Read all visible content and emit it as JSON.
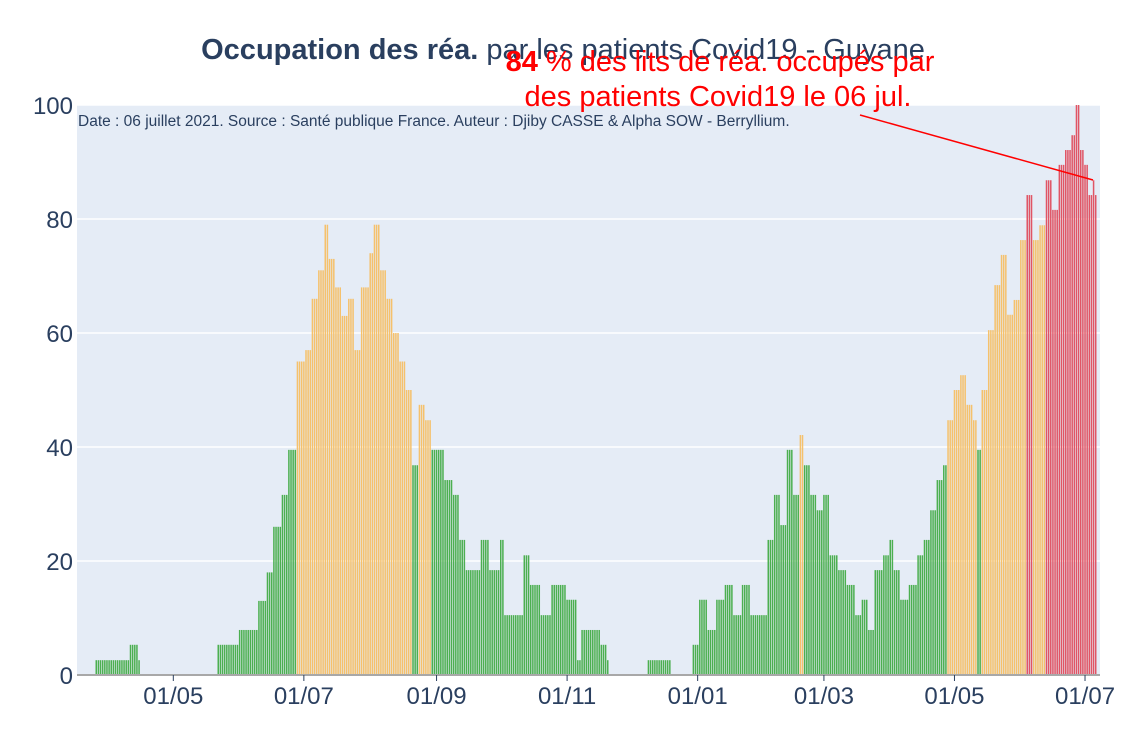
{
  "chart_data": {
    "type": "bar",
    "title": "Occupation des réa. par les patients Covid19 - Guyane",
    "title_bold_part": "Occupation des réa.",
    "title_rest": " par les patients Covid19 - Guyane",
    "subtitle": "Date : 06 juillet 2021. Source : Santé publique France. Auteur : Djiby CASSE & Alpha SOW - Berryllium.",
    "annotation": {
      "value_text": "84",
      "line1_rest": " % des lits de réa. occupés par",
      "line2": "des patients Covid19 le 06 jul."
    },
    "x_start_date": "2020-03-19",
    "x_end_date": "2021-07-06",
    "xlim": [
      "2020-03-17",
      "2021-07-08"
    ],
    "ylim": [
      0,
      100
    ],
    "x_ticks": [
      {
        "date": "2020-05-01",
        "label": "01/05"
      },
      {
        "date": "2020-07-01",
        "label": "01/07"
      },
      {
        "date": "2020-09-01",
        "label": "01/09"
      },
      {
        "date": "2020-11-01",
        "label": "01/11"
      },
      {
        "date": "2021-01-01",
        "label": "01/01"
      },
      {
        "date": "2021-03-01",
        "label": "01/03"
      },
      {
        "date": "2021-05-01",
        "label": "01/05"
      },
      {
        "date": "2021-07-01",
        "label": "01/07"
      }
    ],
    "y_ticks": [
      {
        "value": 0,
        "label": "0"
      },
      {
        "value": 20,
        "label": "20"
      },
      {
        "value": 40,
        "label": "40"
      },
      {
        "value": 60,
        "label": "60"
      },
      {
        "value": 80,
        "label": "80"
      },
      {
        "value": 100,
        "label": "100"
      }
    ],
    "color_thresholds": [
      {
        "max": 40,
        "color": "#4caf50"
      },
      {
        "max": 60,
        "color": "#f5c16c"
      },
      {
        "max": 80,
        "color": "#f5c16c"
      },
      {
        "max": 1000,
        "color": "#e05565"
      }
    ],
    "series_keypoints": [
      [
        "2020-03-19",
        0
      ],
      [
        "2020-03-25",
        0
      ],
      [
        "2020-03-26",
        2.6
      ],
      [
        "2020-04-10",
        2.6
      ],
      [
        "2020-04-11",
        5.3
      ],
      [
        "2020-04-14",
        5.3
      ],
      [
        "2020-04-15",
        2.6
      ],
      [
        "2020-04-16",
        0
      ],
      [
        "2020-05-21",
        0
      ],
      [
        "2020-05-22",
        5.3
      ],
      [
        "2020-05-31",
        5.3
      ],
      [
        "2020-06-01",
        7.9
      ],
      [
        "2020-06-07",
        7.9
      ],
      [
        "2020-06-10",
        13
      ],
      [
        "2020-06-14",
        18
      ],
      [
        "2020-06-17",
        26
      ],
      [
        "2020-06-21",
        31.6
      ],
      [
        "2020-06-24",
        39.5
      ],
      [
        "2020-06-28",
        55
      ],
      [
        "2020-07-02",
        57
      ],
      [
        "2020-07-05",
        66
      ],
      [
        "2020-07-08",
        71
      ],
      [
        "2020-07-11",
        79
      ],
      [
        "2020-07-13",
        73
      ],
      [
        "2020-07-16",
        68
      ],
      [
        "2020-07-19",
        63
      ],
      [
        "2020-07-22",
        66
      ],
      [
        "2020-07-25",
        57
      ],
      [
        "2020-07-28",
        68
      ],
      [
        "2020-08-01",
        74
      ],
      [
        "2020-08-03",
        79
      ],
      [
        "2020-08-06",
        71
      ],
      [
        "2020-08-09",
        66
      ],
      [
        "2020-08-12",
        60
      ],
      [
        "2020-08-15",
        55
      ],
      [
        "2020-08-18",
        50
      ],
      [
        "2020-08-21",
        36.8
      ],
      [
        "2020-08-24",
        47.4
      ],
      [
        "2020-08-27",
        44.7
      ],
      [
        "2020-08-30",
        39.5
      ],
      [
        "2020-09-02",
        39.5
      ],
      [
        "2020-09-05",
        34.2
      ],
      [
        "2020-09-09",
        31.6
      ],
      [
        "2020-09-12",
        23.7
      ],
      [
        "2020-09-15",
        18.4
      ],
      [
        "2020-09-20",
        18.4
      ],
      [
        "2020-09-22",
        23.7
      ],
      [
        "2020-09-26",
        18.4
      ],
      [
        "2020-10-01",
        23.7
      ],
      [
        "2020-10-03",
        10.5
      ],
      [
        "2020-10-10",
        10.5
      ],
      [
        "2020-10-12",
        21
      ],
      [
        "2020-10-15",
        15.8
      ],
      [
        "2020-10-20",
        10.5
      ],
      [
        "2020-10-25",
        15.8
      ],
      [
        "2020-11-01",
        13.2
      ],
      [
        "2020-11-06",
        2.6
      ],
      [
        "2020-11-08",
        7.9
      ],
      [
        "2020-11-15",
        7.9
      ],
      [
        "2020-11-17",
        5.3
      ],
      [
        "2020-11-20",
        2.6
      ],
      [
        "2020-11-21",
        0
      ],
      [
        "2020-12-08",
        0
      ],
      [
        "2020-12-09",
        2.6
      ],
      [
        "2020-12-19",
        2.6
      ],
      [
        "2020-12-20",
        0
      ],
      [
        "2020-12-29",
        0
      ],
      [
        "2020-12-30",
        5.3
      ],
      [
        "2021-01-02",
        13.2
      ],
      [
        "2021-01-06",
        7.9
      ],
      [
        "2021-01-10",
        13.2
      ],
      [
        "2021-01-14",
        15.8
      ],
      [
        "2021-01-18",
        10.5
      ],
      [
        "2021-01-22",
        15.8
      ],
      [
        "2021-01-26",
        10.5
      ],
      [
        "2021-01-30",
        10.5
      ],
      [
        "2021-02-03",
        23.7
      ],
      [
        "2021-02-06",
        31.6
      ],
      [
        "2021-02-09",
        26.3
      ],
      [
        "2021-02-12",
        39.5
      ],
      [
        "2021-02-15",
        31.6
      ],
      [
        "2021-02-18",
        42.1
      ],
      [
        "2021-02-20",
        36.8
      ],
      [
        "2021-02-23",
        31.6
      ],
      [
        "2021-02-26",
        28.9
      ],
      [
        "2021-03-01",
        31.6
      ],
      [
        "2021-03-04",
        21
      ],
      [
        "2021-03-08",
        18.4
      ],
      [
        "2021-03-12",
        15.8
      ],
      [
        "2021-03-16",
        10.5
      ],
      [
        "2021-03-19",
        13.2
      ],
      [
        "2021-03-22",
        7.9
      ],
      [
        "2021-03-25",
        18.4
      ],
      [
        "2021-03-29",
        21
      ],
      [
        "2021-04-01",
        23.7
      ],
      [
        "2021-04-03",
        18.4
      ],
      [
        "2021-04-06",
        13.2
      ],
      [
        "2021-04-10",
        15.8
      ],
      [
        "2021-04-14",
        21
      ],
      [
        "2021-04-17",
        23.7
      ],
      [
        "2021-04-20",
        28.9
      ],
      [
        "2021-04-23",
        34.2
      ],
      [
        "2021-04-26",
        36.8
      ],
      [
        "2021-04-28",
        44.7
      ],
      [
        "2021-05-01",
        50
      ],
      [
        "2021-05-04",
        52.6
      ],
      [
        "2021-05-07",
        47.4
      ],
      [
        "2021-05-10",
        44.7
      ],
      [
        "2021-05-12",
        39.5
      ],
      [
        "2021-05-14",
        50
      ],
      [
        "2021-05-17",
        60.5
      ],
      [
        "2021-05-20",
        68.4
      ],
      [
        "2021-05-23",
        73.7
      ],
      [
        "2021-05-26",
        63.2
      ],
      [
        "2021-05-29",
        65.8
      ],
      [
        "2021-06-01",
        76.3
      ],
      [
        "2021-06-04",
        84.2
      ],
      [
        "2021-06-07",
        76.3
      ],
      [
        "2021-06-10",
        78.9
      ],
      [
        "2021-06-13",
        86.8
      ],
      [
        "2021-06-16",
        81.6
      ],
      [
        "2021-06-19",
        89.5
      ],
      [
        "2021-06-22",
        92.1
      ],
      [
        "2021-06-25",
        94.7
      ],
      [
        "2021-06-27",
        100
      ],
      [
        "2021-06-29",
        92.1
      ],
      [
        "2021-07-01",
        89.5
      ],
      [
        "2021-07-03",
        84.2
      ],
      [
        "2021-07-05",
        86.8
      ],
      [
        "2021-07-06",
        84.2
      ]
    ]
  }
}
